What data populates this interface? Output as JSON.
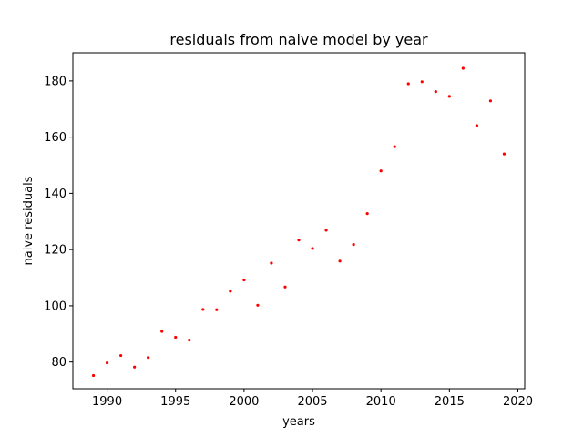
{
  "chart_data": {
    "type": "scatter",
    "title": "residuals from naive model by year",
    "xlabel": "years",
    "ylabel": "naive residuals",
    "xlim": [
      1987.5,
      2020.5
    ],
    "ylim": [
      70.5,
      190
    ],
    "xticks": [
      1990,
      1995,
      2000,
      2005,
      2010,
      2015,
      2020
    ],
    "xtick_labels": [
      "1990",
      "1995",
      "2000",
      "2005",
      "2010",
      "2015",
      "2020"
    ],
    "yticks": [
      80,
      100,
      120,
      140,
      160,
      180
    ],
    "ytick_labels": [
      "80",
      "100",
      "120",
      "140",
      "160",
      "180"
    ],
    "grid": false,
    "marker_color": "#ff0000",
    "series": [
      {
        "x": [
          1989,
          1990,
          1991,
          1992,
          1993,
          1994,
          1995,
          1996,
          1997,
          1998,
          1999,
          2000,
          2001,
          2002,
          2003,
          2004,
          2005,
          2006,
          2007,
          2008,
          2009,
          2010,
          2011,
          2012,
          2013,
          2014,
          2015,
          2016,
          2017,
          2018,
          2019
        ],
        "y": [
          75.2,
          79.7,
          82.3,
          78.2,
          81.6,
          90.9,
          88.8,
          87.8,
          98.7,
          98.6,
          105.2,
          109.2,
          100.2,
          115.2,
          106.7,
          123.4,
          120.4,
          126.9,
          115.9,
          121.8,
          132.8,
          148.0,
          156.6,
          179.0,
          179.7,
          176.2,
          174.5,
          184.5,
          164.1,
          172.9,
          154.0
        ]
      }
    ]
  }
}
